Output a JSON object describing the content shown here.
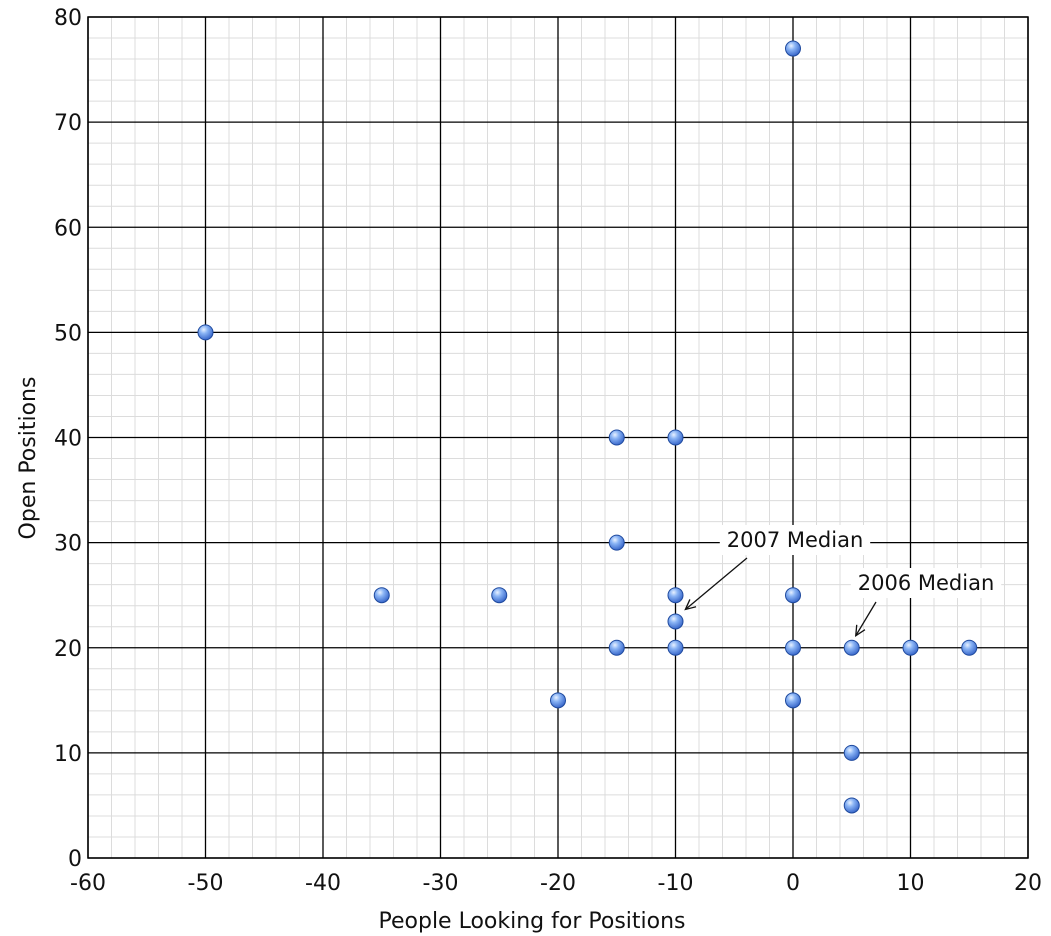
{
  "chart_data": {
    "type": "scatter",
    "xlabel": "People Looking for Positions",
    "ylabel": "Open Positions",
    "xlim": [
      -60,
      20
    ],
    "ylim": [
      0,
      80
    ],
    "x_ticks": [
      -60,
      -50,
      -40,
      -30,
      -20,
      -10,
      0,
      10,
      20
    ],
    "y_ticks": [
      0,
      10,
      20,
      30,
      40,
      50,
      60,
      70,
      80
    ],
    "grid": true,
    "legend": "none",
    "marker_color": "#5b8fe0",
    "points": [
      {
        "x": 0,
        "y": 77
      },
      {
        "x": -50,
        "y": 50
      },
      {
        "x": -15,
        "y": 40
      },
      {
        "x": -10,
        "y": 40
      },
      {
        "x": -15,
        "y": 30
      },
      {
        "x": -35,
        "y": 25
      },
      {
        "x": -25,
        "y": 25
      },
      {
        "x": -10,
        "y": 25
      },
      {
        "x": 0,
        "y": 25
      },
      {
        "x": -10,
        "y": 22.5
      },
      {
        "x": -15,
        "y": 20
      },
      {
        "x": -10,
        "y": 20
      },
      {
        "x": 0,
        "y": 20
      },
      {
        "x": 5,
        "y": 20
      },
      {
        "x": 10,
        "y": 20
      },
      {
        "x": 15,
        "y": 20
      },
      {
        "x": -20,
        "y": 15
      },
      {
        "x": 0,
        "y": 15
      },
      {
        "x": 5,
        "y": 10
      },
      {
        "x": 5,
        "y": 5
      }
    ],
    "annotations": [
      {
        "text": "2007 Median",
        "x": -9.5,
        "y": 22.5
      },
      {
        "text": "2006 Median",
        "x": 5,
        "y": 20
      }
    ]
  }
}
